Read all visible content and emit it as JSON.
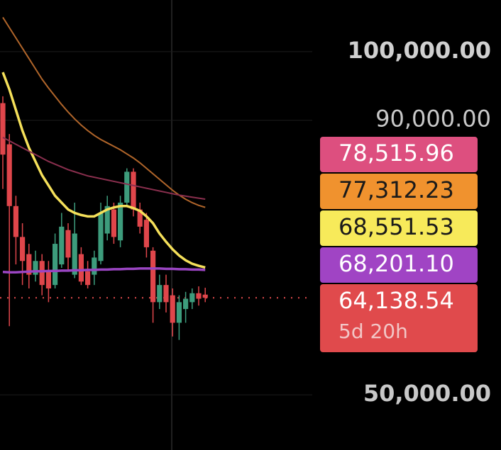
{
  "chart_data": {
    "type": "candlestick",
    "ylim": [
      41959,
      107526
    ],
    "yticks": [
      {
        "value": 100000,
        "label": "100,000.00"
      },
      {
        "value": 90000,
        "label": "90,000.00"
      },
      {
        "value": 50000,
        "label": "50,000.00"
      }
    ],
    "up_color": "#3d9c7c",
    "down_color": "#e0464b",
    "open": [
      92500,
      86500,
      77500,
      73000,
      70500,
      67500,
      69500,
      68000,
      66000,
      69000,
      74000,
      67500,
      70500,
      68000,
      67500,
      69500,
      73500,
      77000,
      72500,
      78000,
      82500,
      77000,
      75500,
      71000,
      63500,
      66000,
      64500,
      60500,
      62500,
      63500,
      64800,
      64600
    ],
    "high": [
      93500,
      88000,
      79000,
      75000,
      72000,
      71000,
      70500,
      69500,
      73500,
      76500,
      75000,
      78000,
      71500,
      69500,
      71000,
      78000,
      79000,
      78000,
      79000,
      83000,
      83000,
      78000,
      76500,
      71500,
      67500,
      67500,
      65500,
      64500,
      65000,
      65500,
      65800,
      65600
    ],
    "low": [
      80000,
      60000,
      69000,
      66000,
      65500,
      66500,
      64500,
      63500,
      65500,
      68500,
      68000,
      67000,
      66000,
      65500,
      66000,
      69000,
      72500,
      72000,
      71500,
      77500,
      76000,
      73500,
      70000,
      60500,
      62500,
      62000,
      58500,
      58000,
      60500,
      62500,
      63000,
      63500
    ],
    "close": [
      85000,
      77500,
      73000,
      69500,
      67500,
      69500,
      66000,
      65500,
      72000,
      74500,
      70000,
      73500,
      66500,
      66000,
      70000,
      76500,
      77500,
      73000,
      78000,
      82500,
      77000,
      74500,
      71500,
      63500,
      66000,
      63500,
      60500,
      63500,
      64000,
      64800,
      64000,
      64138.54
    ],
    "series": [
      {
        "color": "#f5e05a",
        "values": [
          97000,
          94500,
          91500,
          88500,
          86000,
          84000,
          82000,
          80500,
          79000,
          78000,
          77000,
          76500,
          76200,
          76000,
          76000,
          76500,
          77000,
          77300,
          77500,
          77500,
          77200,
          76800,
          76000,
          75000,
          73500,
          72300,
          71200,
          70300,
          69600,
          69100,
          68800,
          68551.53
        ]
      },
      {
        "color": "#b0652a",
        "values": [
          105000,
          103500,
          102000,
          100500,
          99000,
          97500,
          96000,
          94700,
          93500,
          92300,
          91200,
          90200,
          89300,
          88500,
          87800,
          87200,
          86700,
          86200,
          85700,
          85100,
          84500,
          83800,
          83000,
          82200,
          81400,
          80600,
          79800,
          79100,
          78500,
          78000,
          77600,
          77312.23
        ]
      },
      {
        "color": "#8a2f4e",
        "values": [
          87500,
          87000,
          86500,
          86000,
          85500,
          85000,
          84500,
          84000,
          83600,
          83200,
          82800,
          82500,
          82200,
          81900,
          81700,
          81500,
          81300,
          81100,
          80900,
          80700,
          80500,
          80300,
          80100,
          79900,
          79700,
          79500,
          79300,
          79100,
          78950,
          78800,
          78650,
          78515.96
        ]
      },
      {
        "color": "#9a45c2",
        "values": [
          67900,
          67850,
          67850,
          67900,
          67950,
          68000,
          68000,
          68050,
          68050,
          68100,
          68100,
          68150,
          68150,
          68200,
          68200,
          68250,
          68250,
          68300,
          68300,
          68350,
          68350,
          68400,
          68400,
          68400,
          68400,
          68350,
          68350,
          68300,
          68300,
          68250,
          68250,
          68201.1
        ]
      }
    ],
    "price_labels": [
      {
        "value": 78515.96,
        "label": "78,515.96",
        "color": "#dd4f7f",
        "text_color": "#ffffff"
      },
      {
        "value": 77312.23,
        "label": "77,312.23",
        "color": "#f0922e",
        "text_color": "#1a1a1a"
      },
      {
        "value": 68551.53,
        "label": "68,551.53",
        "color": "#f7ea5a",
        "text_color": "#1a1a1a"
      },
      {
        "value": 68201.1,
        "label": "68,201.10",
        "color": "#a044c4",
        "text_color": "#ffffff"
      },
      {
        "value": 64138.54,
        "label": "64,138.54",
        "color": "#e04a4c",
        "text_color": "#ffffff"
      }
    ],
    "countdown": "5d 20h"
  }
}
